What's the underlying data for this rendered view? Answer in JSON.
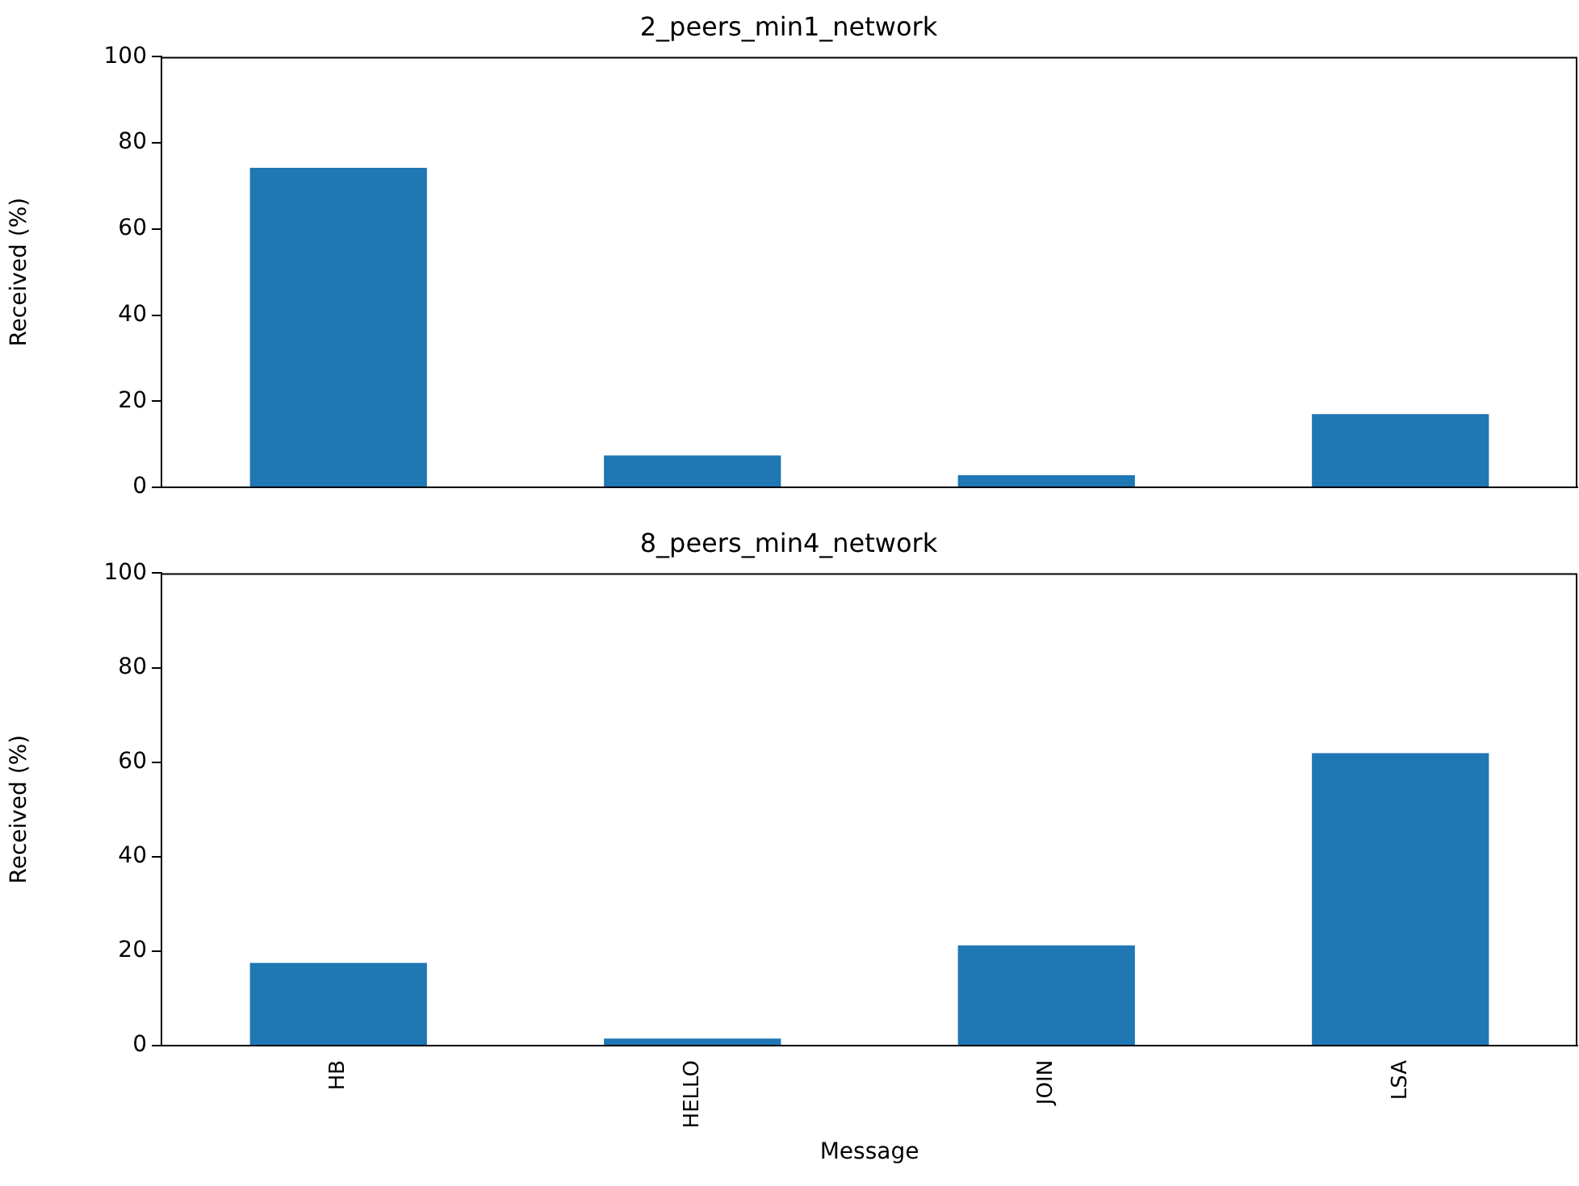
{
  "chart_data": [
    {
      "type": "bar",
      "title": "2_peers_min1_network",
      "ylabel": "Received (%)",
      "categories": [
        null,
        null,
        null,
        null
      ],
      "values": [
        74.2,
        7.4,
        2.8,
        17.0
      ],
      "color": "#1f77b4",
      "ylim": [
        0,
        100
      ],
      "yticks": [
        0,
        20,
        40,
        60,
        80,
        100
      ],
      "grid": false,
      "legend": false,
      "tick_labels": "y"
    },
    {
      "type": "bar",
      "title": "8_peers_min4_network",
      "xlabel": "Message",
      "ylabel": "Received (%)",
      "categories": [
        "HB",
        "HELLO",
        "JOIN",
        "LSA"
      ],
      "values": [
        17.5,
        1.5,
        21.2,
        61.9
      ],
      "color": "#1f77b4",
      "ylim": [
        0,
        100
      ],
      "yticks": [
        0,
        20,
        40,
        60,
        80,
        100
      ],
      "grid": false,
      "legend": false
    }
  ]
}
